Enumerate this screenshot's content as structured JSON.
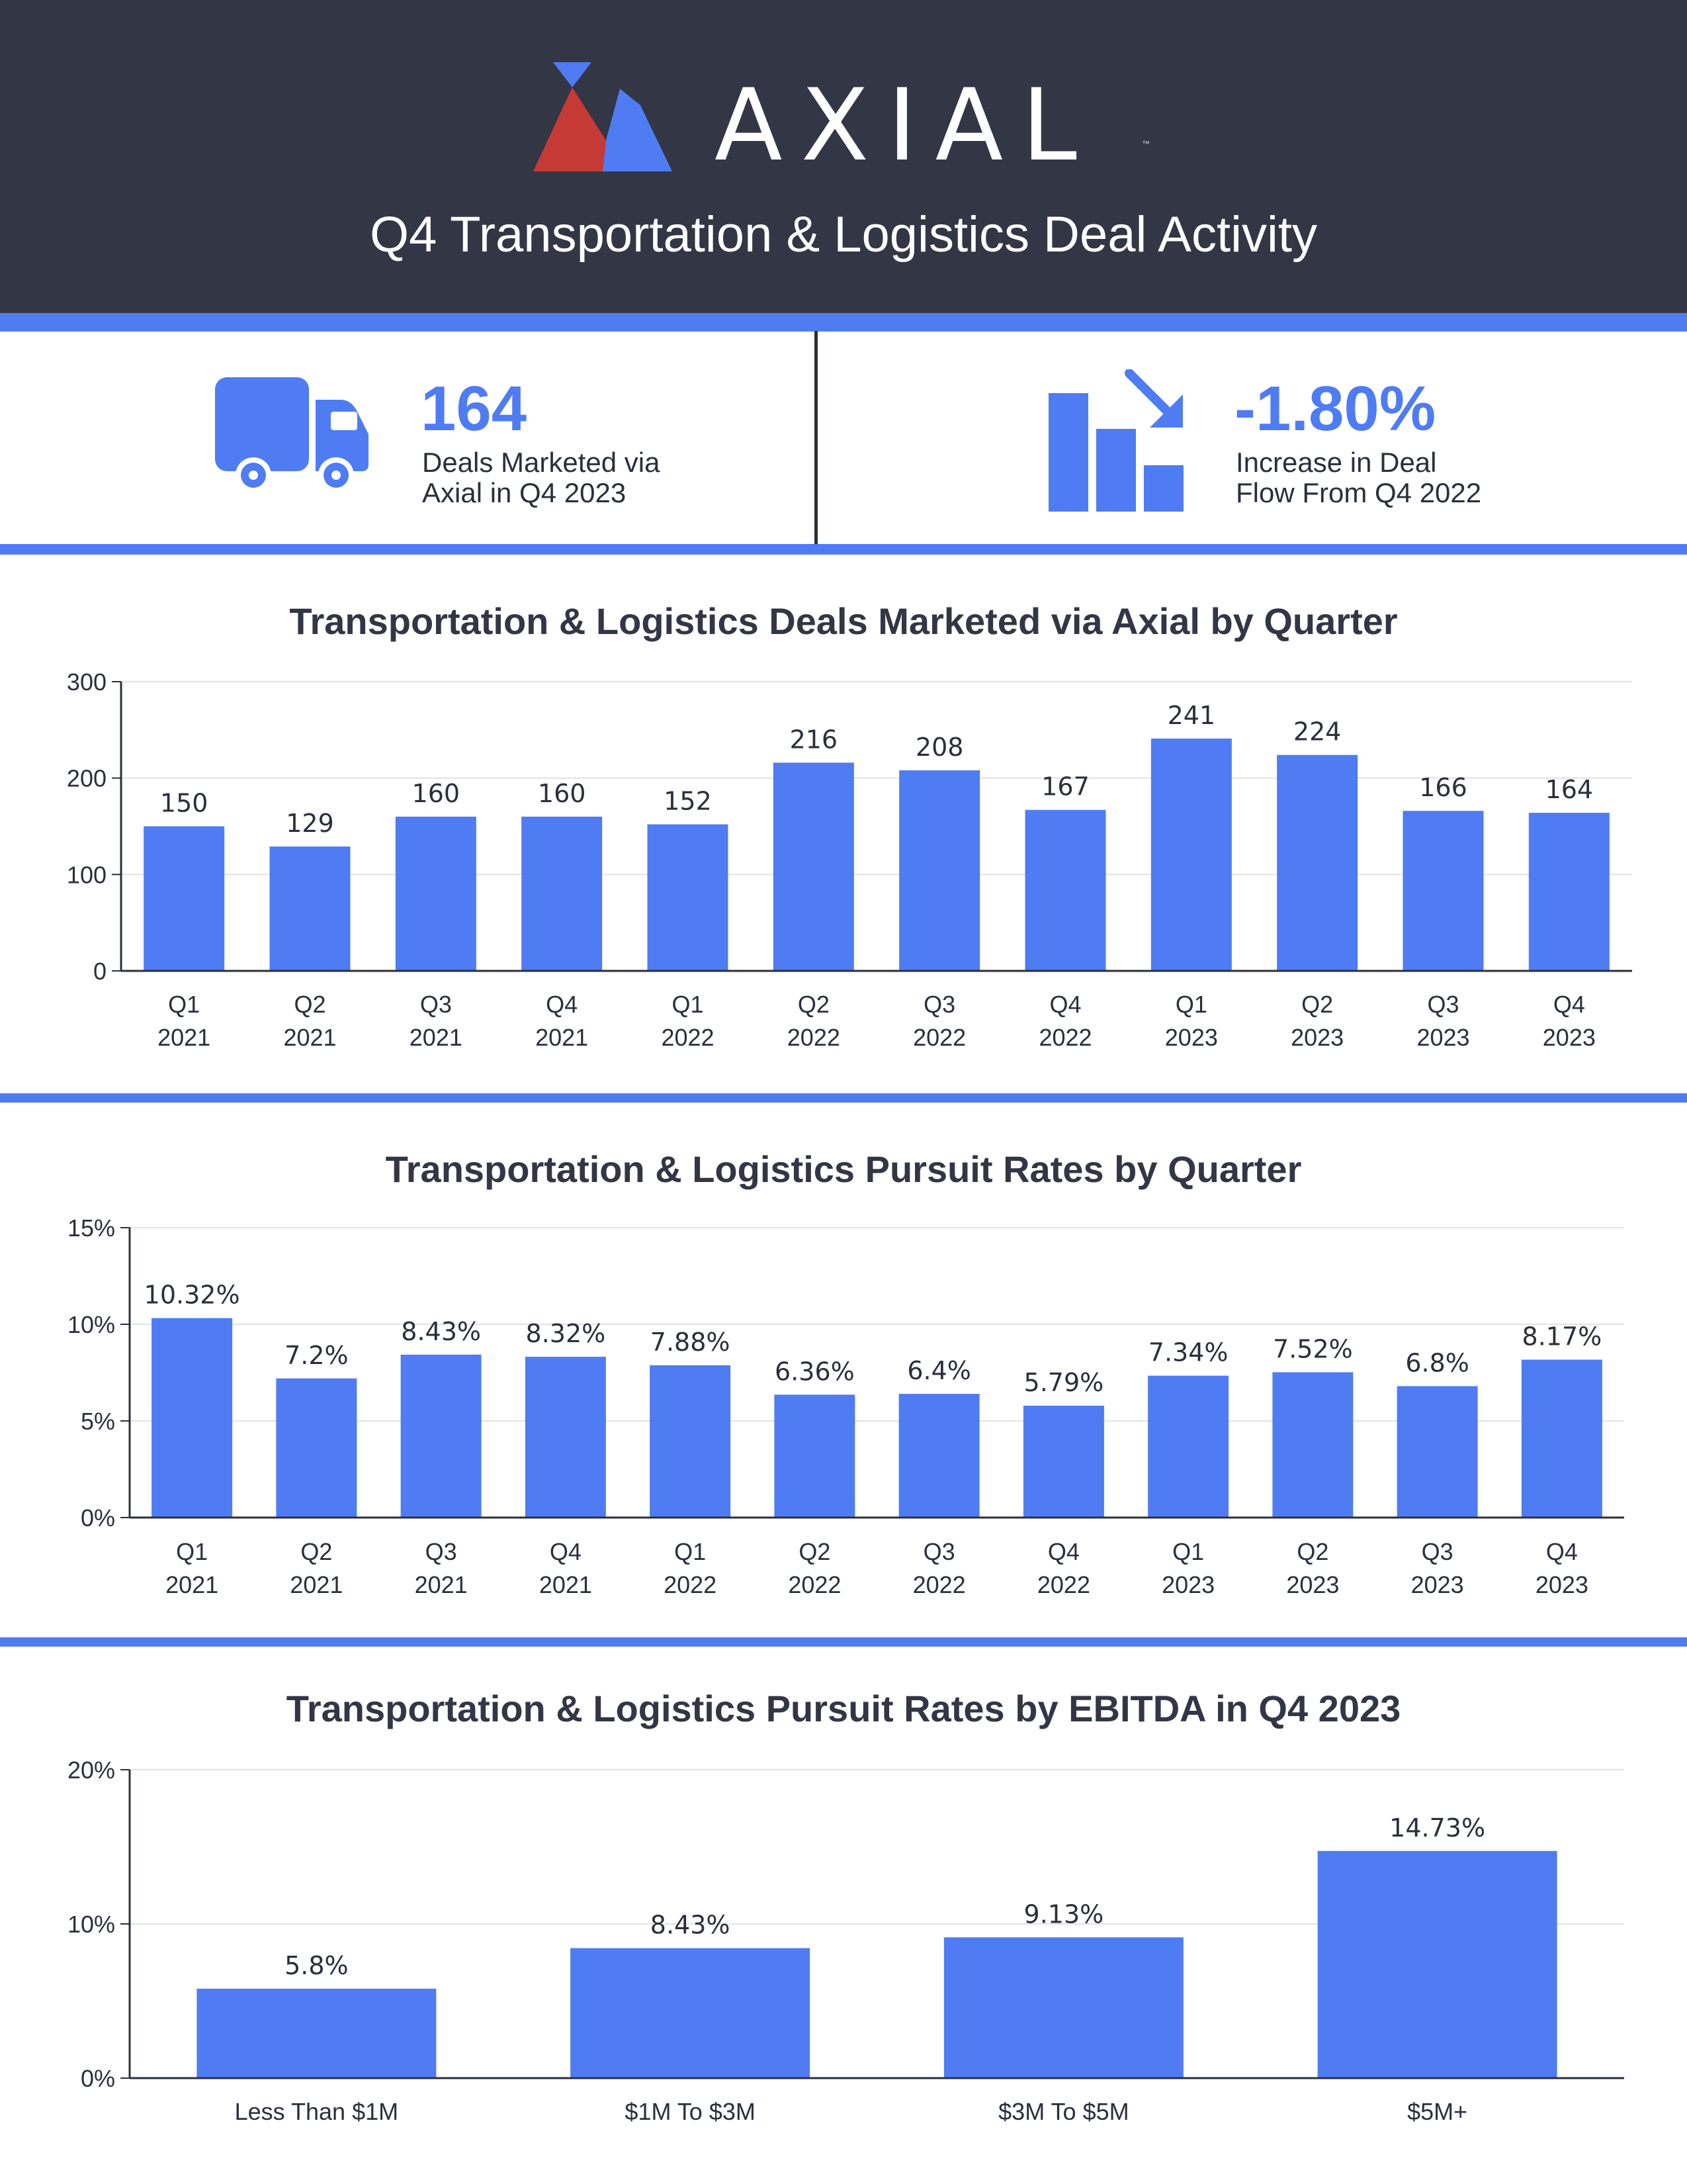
{
  "header": {
    "brand": "AXIAL",
    "trademark": "™",
    "title": "Q4 Transportation & Logistics Deal Activity",
    "colors": {
      "background": "#333644",
      "accent": "#4f7cf2",
      "logo_red": "#c63a35",
      "logo_blue": "#4f7cf2"
    }
  },
  "stats": [
    {
      "icon": "truck-icon",
      "value": "164",
      "label_line1": "Deals Marketed via",
      "label_line2": "Axial in Q4 2023"
    },
    {
      "icon": "declining-bars-icon",
      "value": "-1.80%",
      "label_line1": "Increase in Deal",
      "label_line2": "Flow From Q4 2022"
    }
  ],
  "chart_data": [
    {
      "type": "bar",
      "title": "Transportation & Logistics Deals Marketed via Axial by Quarter",
      "categories": [
        [
          "Q1",
          "2021"
        ],
        [
          "Q2",
          "2021"
        ],
        [
          "Q3",
          "2021"
        ],
        [
          "Q4",
          "2021"
        ],
        [
          "Q1",
          "2022"
        ],
        [
          "Q2",
          "2022"
        ],
        [
          "Q3",
          "2022"
        ],
        [
          "Q4",
          "2022"
        ],
        [
          "Q1",
          "2023"
        ],
        [
          "Q2",
          "2023"
        ],
        [
          "Q3",
          "2023"
        ],
        [
          "Q4",
          "2023"
        ]
      ],
      "values": [
        150,
        129,
        160,
        160,
        152,
        216,
        208,
        167,
        241,
        224,
        166,
        164
      ],
      "value_labels": [
        "150",
        "129",
        "160",
        "160",
        "152",
        "216",
        "208",
        "167",
        "241",
        "224",
        "166",
        "164"
      ],
      "ylim": [
        0,
        300
      ],
      "yticks": [
        0,
        100,
        200,
        300
      ],
      "ytick_labels": [
        "0",
        "100",
        "200",
        "300"
      ],
      "grid": true,
      "color": "#4f7cf2"
    },
    {
      "type": "bar",
      "title": "Transportation & Logistics Pursuit Rates by Quarter",
      "categories": [
        [
          "Q1",
          "2021"
        ],
        [
          "Q2",
          "2021"
        ],
        [
          "Q3",
          "2021"
        ],
        [
          "Q4",
          "2021"
        ],
        [
          "Q1",
          "2022"
        ],
        [
          "Q2",
          "2022"
        ],
        [
          "Q3",
          "2022"
        ],
        [
          "Q4",
          "2022"
        ],
        [
          "Q1",
          "2023"
        ],
        [
          "Q2",
          "2023"
        ],
        [
          "Q3",
          "2023"
        ],
        [
          "Q4",
          "2023"
        ]
      ],
      "values": [
        10.32,
        7.2,
        8.43,
        8.32,
        7.88,
        6.36,
        6.4,
        5.79,
        7.34,
        7.52,
        6.8,
        8.17
      ],
      "value_labels": [
        "10.32%",
        "7.2%",
        "8.43%",
        "8.32%",
        "7.88%",
        "6.36%",
        "6.4%",
        "5.79%",
        "7.34%",
        "7.52%",
        "6.8%",
        "8.17%"
      ],
      "ylim": [
        0,
        15
      ],
      "yticks": [
        0,
        5,
        10,
        15
      ],
      "ytick_labels": [
        "0%",
        "5%",
        "10%",
        "15%"
      ],
      "grid": true,
      "color": "#4f7cf2"
    },
    {
      "type": "bar",
      "title": "Transportation & Logistics Pursuit Rates by EBITDA in Q4 2023",
      "categories": [
        [
          "Less Than $1M"
        ],
        [
          "$1M To $3M"
        ],
        [
          "$3M To $5M"
        ],
        [
          "$5M+"
        ]
      ],
      "values": [
        5.8,
        8.43,
        9.13,
        14.73
      ],
      "value_labels": [
        "5.8%",
        "8.43%",
        "9.13%",
        "14.73%"
      ],
      "ylim": [
        0,
        20
      ],
      "yticks": [
        0,
        10,
        20
      ],
      "ytick_labels": [
        "0%",
        "10%",
        "20%"
      ],
      "grid": true,
      "color": "#4f7cf2"
    }
  ]
}
